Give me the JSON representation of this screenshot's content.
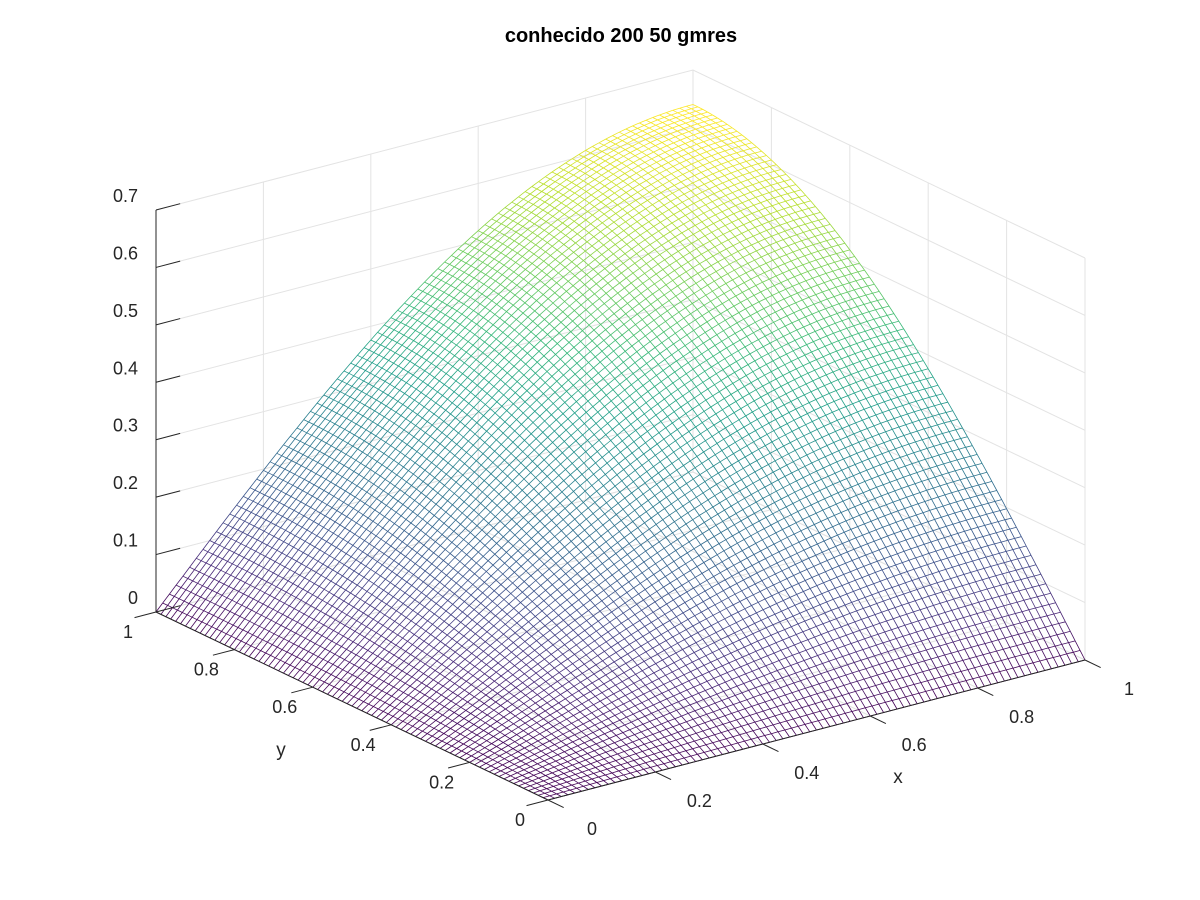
{
  "chart_data": {
    "type": "surface",
    "subtype": "mesh",
    "title": "conhecido 200 50 gmres",
    "xlabel": "x",
    "ylabel": "y",
    "zlabel": "",
    "xlim": [
      0,
      1
    ],
    "ylim": [
      0,
      1
    ],
    "zlim": [
      0,
      0.7
    ],
    "x_ticks": [
      "0",
      "0.2",
      "0.4",
      "0.6",
      "0.8",
      "1"
    ],
    "y_ticks": [
      "0",
      "0.2",
      "0.4",
      "0.6",
      "0.8",
      "1"
    ],
    "z_ticks": [
      "0",
      "0.1",
      "0.2",
      "0.3",
      "0.4",
      "0.5",
      "0.6",
      "0.7"
    ],
    "grid": true,
    "colormap": "viridis",
    "z_max": 0.64,
    "z_max_at": [
      1,
      1
    ],
    "boundary_value": 0,
    "mesh_lines_x": 80,
    "mesh_lines_y": 80
  }
}
